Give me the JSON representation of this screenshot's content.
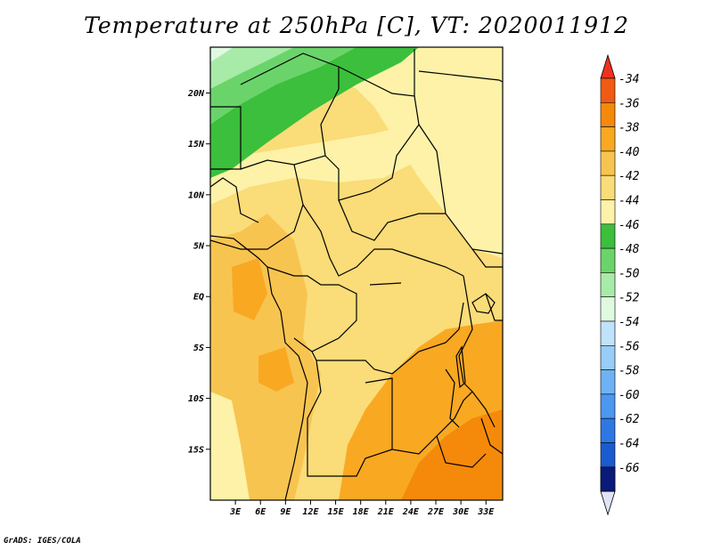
{
  "title": "Temperature at 250hPa [C], VT: 2020011912",
  "credit": "GrADS: IGES/COLA",
  "map": {
    "lat_labels": [
      "20N",
      "15N",
      "10N",
      "5N",
      "EQ",
      "5S",
      "10S",
      "15S"
    ],
    "lat_values": [
      20,
      15,
      10,
      5,
      0,
      -5,
      -10,
      -15
    ],
    "lon_labels": [
      "3E",
      "6E",
      "9E",
      "12E",
      "15E",
      "18E",
      "21E",
      "24E",
      "27E",
      "30E",
      "33E"
    ],
    "lon_values": [
      3,
      6,
      9,
      12,
      15,
      18,
      21,
      24,
      27,
      30,
      33
    ],
    "lon_range": [
      0,
      35
    ],
    "lat_range": [
      -20,
      24.5
    ]
  },
  "colorbar": {
    "labels": [
      "-34",
      "-36",
      "-38",
      "-40",
      "-42",
      "-44",
      "-46",
      "-48",
      "-50",
      "-52",
      "-54",
      "-56",
      "-58",
      "-60",
      "-62",
      "-64",
      "-66"
    ],
    "colors": [
      "#f05a14",
      "#f58a0a",
      "#f9a822",
      "#f8c450",
      "#fadc78",
      "#fdf2a8",
      "#3cbf3c",
      "#6ad46a",
      "#a8eba8",
      "#e0fae0",
      "#c0e2fb",
      "#98cdf8",
      "#6fb2f4",
      "#4c97ef",
      "#2e78e3",
      "#1b5bd0",
      "#1040b0"
    ],
    "top_color": "#f0301e",
    "bottom_color": "#e0e4f8",
    "end_color": "#0a1a78"
  },
  "legend_colors": {
    "c38": "#f9a822",
    "c40": "#f8c450",
    "c42": "#fadc78",
    "c44": "#fdf2a8",
    "g1": "#3cbf3c",
    "g2": "#6ad46a",
    "g3": "#a8eba8",
    "g4": "#e0fae0"
  }
}
